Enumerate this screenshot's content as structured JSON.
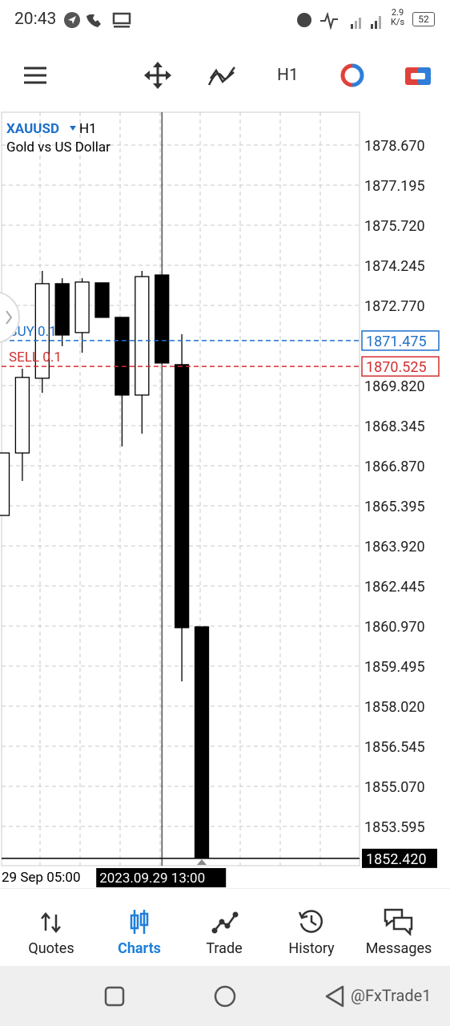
{
  "status_bar": {
    "time": "20:43",
    "speed": "2.9",
    "speed_unit": "K/s",
    "battery": "52"
  },
  "toolbar": {
    "timeframe": "H1"
  },
  "chart_data": {
    "type": "candlestick",
    "symbol": "XAUUSD",
    "timeframe": "H1",
    "description": "Gold vs US Dollar",
    "categories": [
      "29 Sep 05:00",
      null,
      null,
      null,
      null,
      null,
      null,
      null,
      "2023.09.29 13:00",
      null,
      null
    ],
    "open": [
      1865.04,
      1867.34,
      1870.09,
      1873.57,
      1871.77,
      1873.6,
      1872.33,
      1869.47,
      1873.89,
      1870.59,
      1860.94
    ],
    "high": [
      1867.34,
      1870.44,
      1874.04,
      1873.77,
      1873.77,
      1873.6,
      1872.33,
      1874.04,
      1873.89,
      1871.71,
      1860.94
    ],
    "low": [
      1865.04,
      1866.31,
      1869.55,
      1871.27,
      1871.03,
      1872.33,
      1867.58,
      1868.05,
      1870.65,
      1858.93,
      1852.42
    ],
    "close": [
      1867.34,
      1870.12,
      1873.57,
      1871.68,
      1873.63,
      1872.33,
      1869.47,
      1873.83,
      1870.65,
      1860.91,
      1852.42
    ],
    "ylim": [
      1852.15,
      1879.88
    ],
    "yticks": [
      {
        "value": 1878.67,
        "label": "1878.670"
      },
      1877.195,
      {
        "value": 1875.72,
        "label": "1875.720"
      },
      1874.245,
      {
        "value": 1872.77,
        "label": "1872.770"
      },
      {
        "value": 1869.82,
        "label": "1869.820"
      },
      1868.345,
      {
        "value": 1866.87,
        "label": "1866.870"
      },
      1865.395,
      {
        "value": 1863.92,
        "label": "1863.920"
      },
      1862.445,
      {
        "value": 1860.97,
        "label": "1860.970"
      },
      1859.495,
      {
        "value": 1858.02,
        "label": "1858.020"
      },
      1856.545,
      {
        "value": 1855.07,
        "label": "1855.070"
      },
      1853.595
    ],
    "grid": true,
    "buy_label": "BUY 0.1",
    "buy_price": 1871.475,
    "buy_color": "#1e6fc8",
    "sell_label": "SELL 0.1",
    "sell_price": 1870.525,
    "sell_color": "#d32f2f",
    "last_price": {
      "value": 1852.42,
      "label": "1852.420"
    }
  },
  "nav": {
    "items": [
      "Quotes",
      "Charts",
      "Trade",
      "History",
      "Messages"
    ],
    "active": 1,
    "active_color": "#1e7fd8"
  },
  "watermark": "@FxTrade1"
}
